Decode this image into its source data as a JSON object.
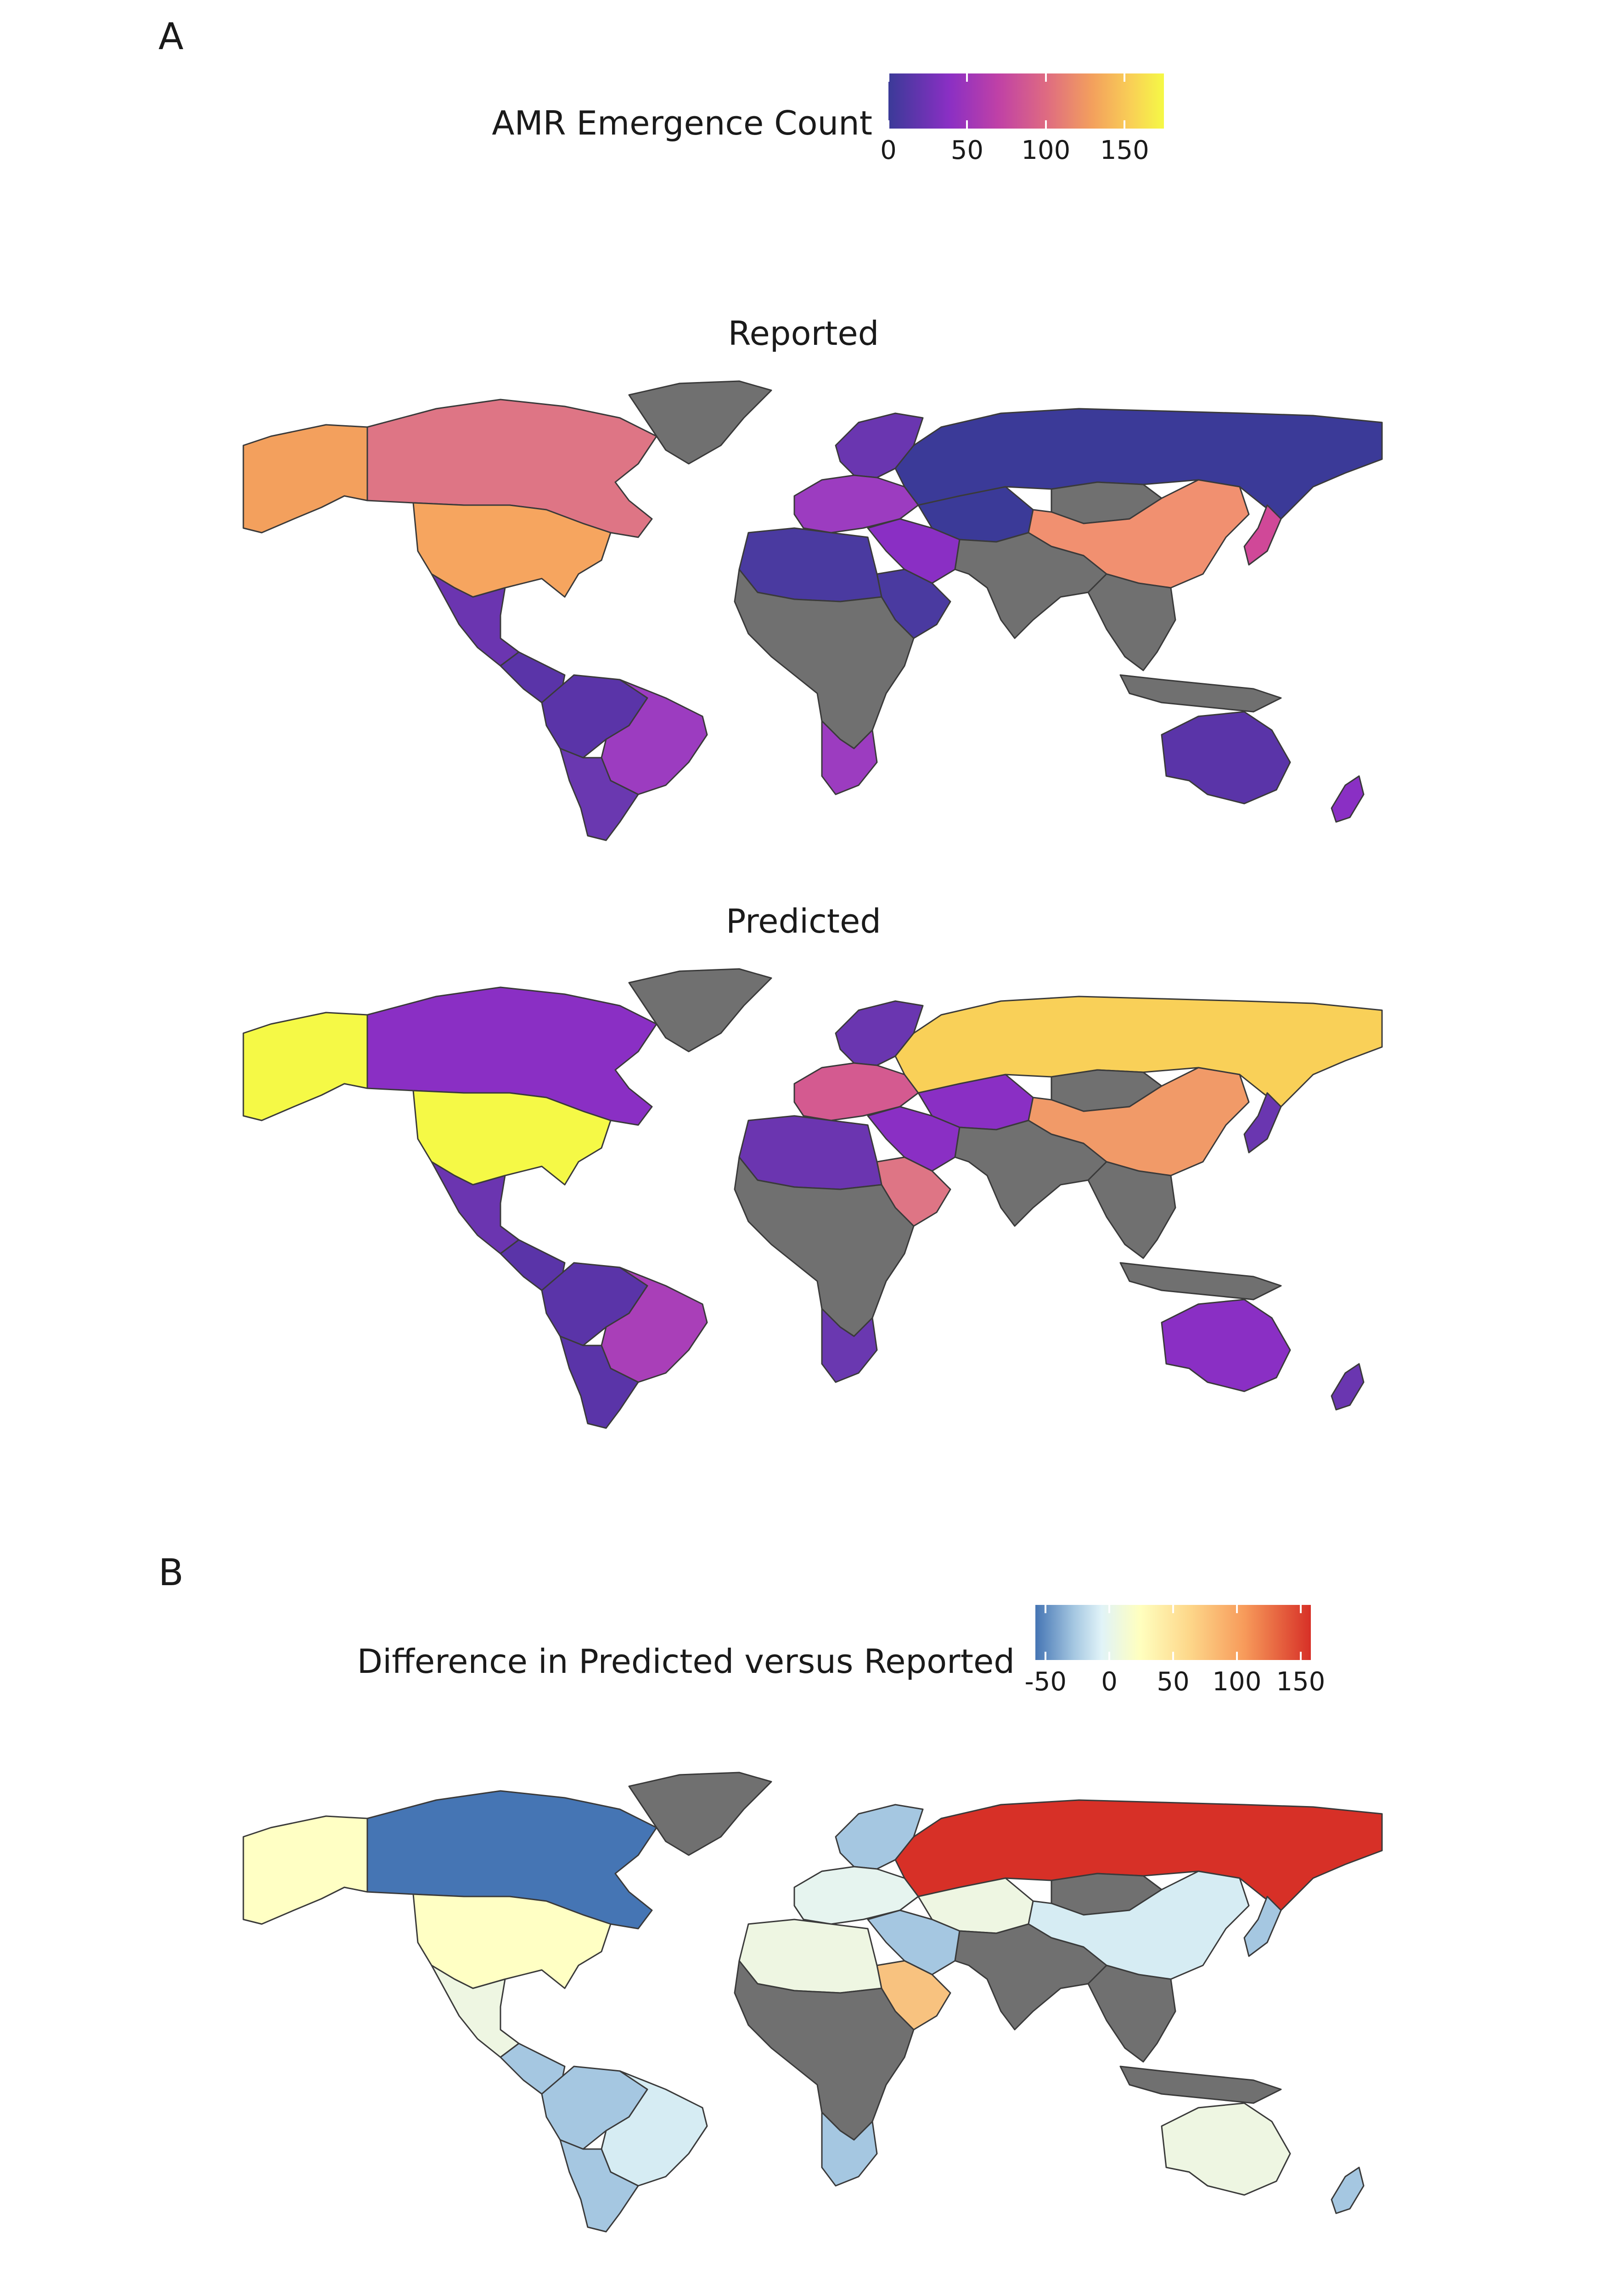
{
  "panel_a": {
    "letter": "A",
    "legend": {
      "title": "AMR Emergence Count",
      "ticks": [
        {
          "value": 0,
          "label": "0"
        },
        {
          "value": 50,
          "label": "50"
        },
        {
          "value": 100,
          "label": "100"
        },
        {
          "value": 150,
          "label": "150"
        }
      ],
      "range": [
        0,
        175
      ],
      "palette": [
        "#3b3a98",
        "#8a2fc4",
        "#c041a6",
        "#de6a82",
        "#f3a05d",
        "#f9cf56",
        "#f5f946"
      ]
    },
    "maps": [
      {
        "title": "Reported"
      },
      {
        "title": "Predicted"
      }
    ]
  },
  "panel_b": {
    "letter": "B",
    "legend": {
      "title": "Difference in Predicted versus Reported",
      "ticks": [
        {
          "value": -50,
          "label": "-50"
        },
        {
          "value": 0,
          "label": "0"
        },
        {
          "value": 50,
          "label": "50"
        },
        {
          "value": 100,
          "label": "100"
        },
        {
          "value": 150,
          "label": "150"
        }
      ],
      "range": [
        -58,
        158
      ],
      "palette": [
        "#4575b4",
        "#a5c7e1",
        "#e0f3f8",
        "#ffffbf",
        "#fdd78a",
        "#f79a5a",
        "#d73027"
      ]
    }
  },
  "colors": {
    "no_data": "#707070",
    "border": "#3a3a3a",
    "background": "#ffffff"
  },
  "regions": {
    "reported": {
      "alaska": "#f3a05d",
      "canada": "#de7585",
      "usa": "#f6a55f",
      "greenland": "#707070",
      "mexico": "#6b35b0",
      "central_america": "#5a34a8",
      "south_america_north": "#5a34a8",
      "brazil": "#9c3cc0",
      "south_america_south": "#6a38b0",
      "europe_north": "#6a36b0",
      "europe_west": "#9c3cc0",
      "russia": "#3b3a98",
      "central_asia": "#3b3a98",
      "middle_east": "#8a2fc4",
      "north_africa": "#4a3aa0",
      "arabia": "#4a3aa0",
      "africa": "#707070",
      "south_africa": "#9c3cc0",
      "south_asia": "#707070",
      "china": "#f19070",
      "mongolia": "#707070",
      "japan": "#d04898",
      "southeast_asia": "#707070",
      "indonesia": "#707070",
      "australia": "#5a34a8",
      "new_zealand": "#8a2fc4"
    },
    "predicted": {
      "alaska": "#f5f946",
      "canada": "#8a2fc4",
      "usa": "#f5f946",
      "greenland": "#707070",
      "mexico": "#6b35b0",
      "central_america": "#5a34a8",
      "south_america_north": "#5a34a8",
      "brazil": "#a93fb8",
      "south_america_south": "#5a34a8",
      "europe_north": "#6a36b0",
      "europe_west": "#d45a90",
      "russia": "#f9d058",
      "central_asia": "#8a2fc4",
      "middle_east": "#8a2fc4",
      "north_africa": "#6b35b0",
      "arabia": "#de7585",
      "africa": "#707070",
      "south_africa": "#6a38b0",
      "south_asia": "#707070",
      "china": "#f19a68",
      "mongolia": "#707070",
      "japan": "#6a36b0",
      "southeast_asia": "#707070",
      "indonesia": "#707070",
      "australia": "#8a2fc4",
      "new_zealand": "#6a36b0"
    },
    "difference": {
      "alaska": "#ffffc4",
      "canada": "#4575b4",
      "usa": "#ffffc4",
      "greenland": "#707070",
      "mexico": "#eef6e2",
      "central_america": "#a5c7e1",
      "south_america_north": "#a5c7e1",
      "brazil": "#d6ecf3",
      "south_america_south": "#a5c7e1",
      "europe_north": "#a5c7e1",
      "europe_west": "#e6f4ef",
      "russia": "#d73027",
      "central_asia": "#eef6e2",
      "middle_east": "#a5c7e1",
      "north_africa": "#eef6e2",
      "arabia": "#f8c27f",
      "africa": "#707070",
      "south_africa": "#a5c7e1",
      "south_asia": "#707070",
      "china": "#d6ecf3",
      "mongolia": "#707070",
      "japan": "#a5c7e1",
      "southeast_asia": "#707070",
      "indonesia": "#707070",
      "australia": "#eef6e2",
      "new_zealand": "#a5c7e1"
    }
  }
}
